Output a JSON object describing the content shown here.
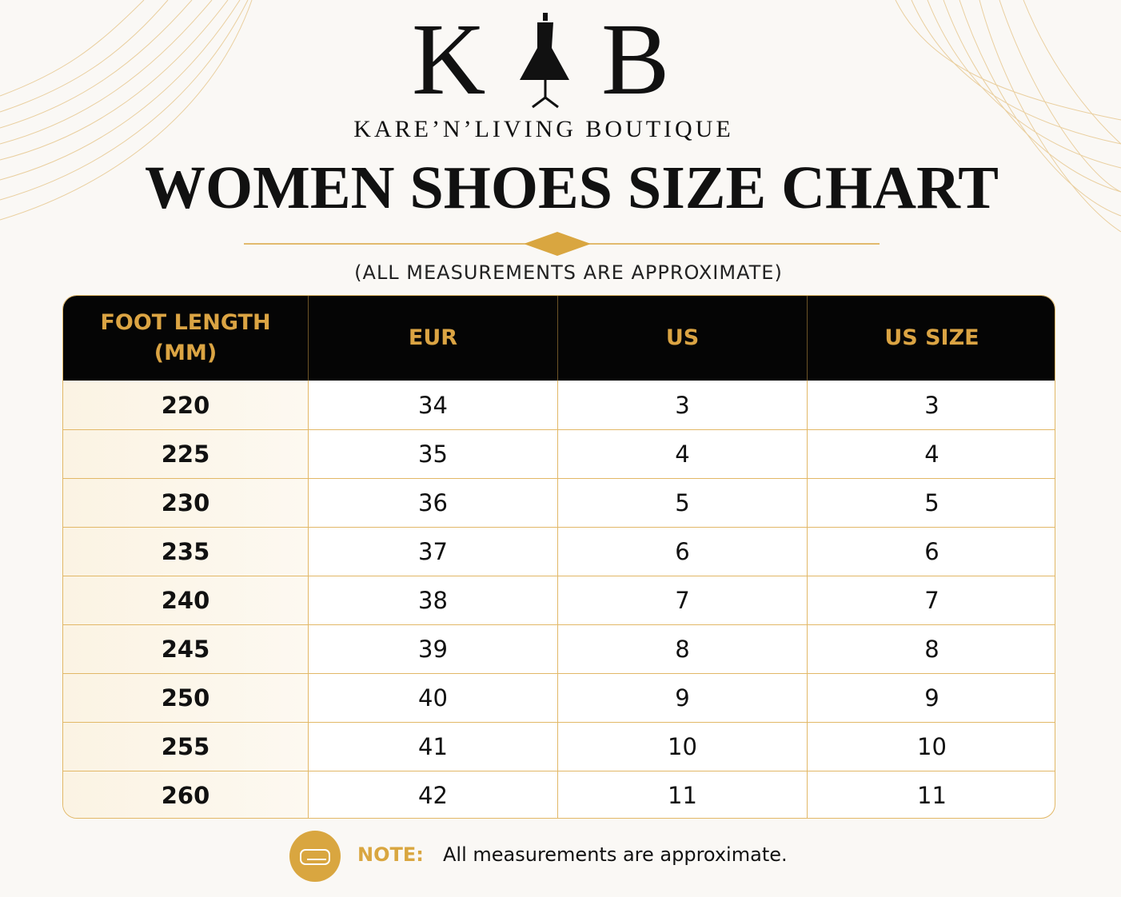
{
  "logo": {
    "left": "K",
    "right": "B"
  },
  "brand": "KARE’N’LIVING BOUTIQUE",
  "title": "WOMEN SHOES SIZE CHART",
  "subtitle": "(ALL MEASUREMENTS ARE APPROXIMATE)",
  "table": {
    "header": [
      "FOOT LENGTH (MM)",
      "EUR",
      "US",
      "US SIZE"
    ],
    "rows": [
      [
        220,
        34,
        3,
        3
      ],
      [
        225,
        35,
        4,
        4
      ],
      [
        230,
        36,
        5,
        5
      ],
      [
        235,
        37,
        6,
        6
      ],
      [
        240,
        38,
        7,
        7
      ],
      [
        245,
        39,
        8,
        8
      ],
      [
        250,
        40,
        9,
        9
      ],
      [
        255,
        41,
        10,
        10
      ],
      [
        260,
        42,
        11,
        11
      ]
    ]
  },
  "note": {
    "label": "NOTE:",
    "text": "All measurements are approximate."
  }
}
